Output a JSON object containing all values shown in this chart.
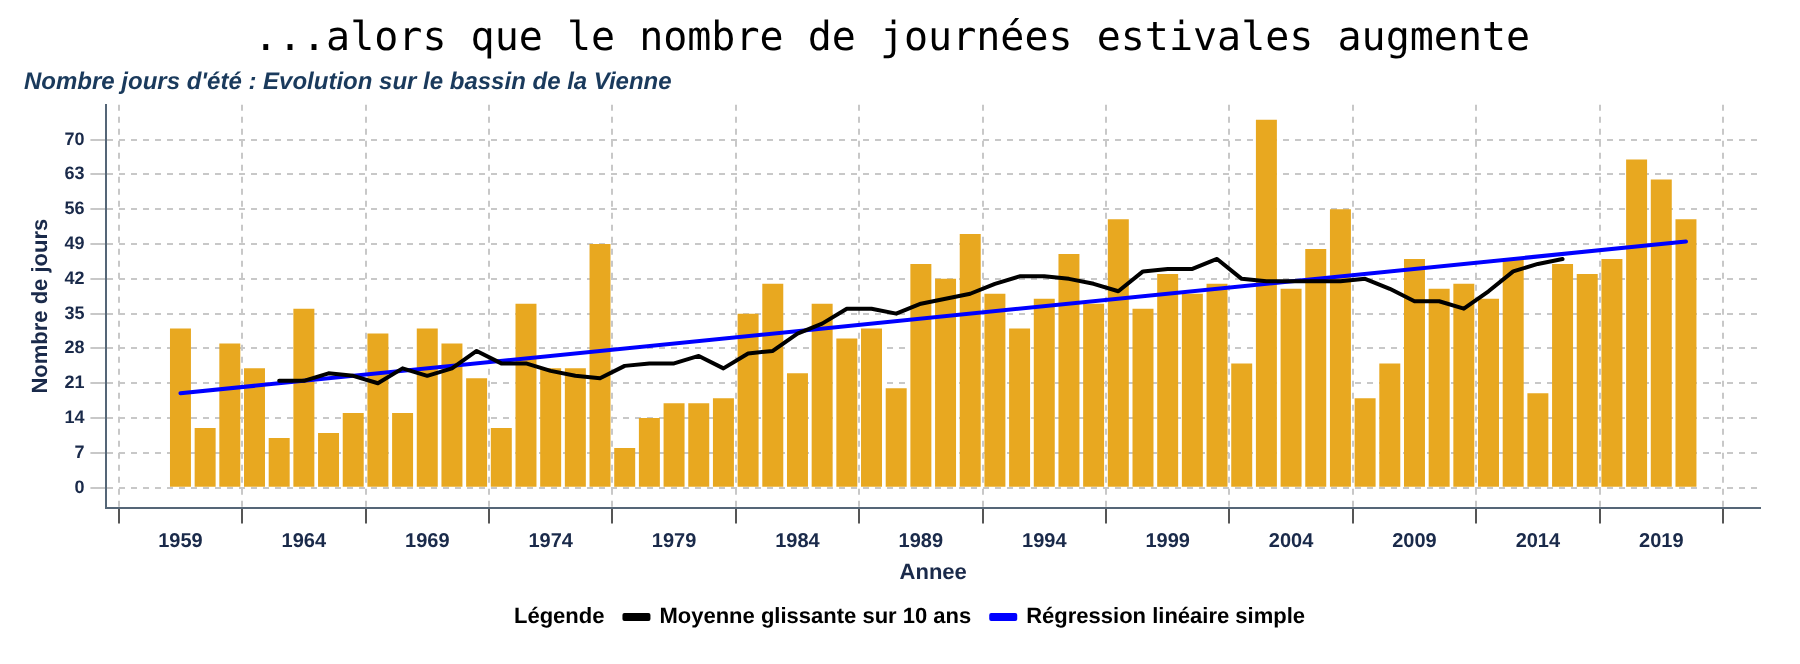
{
  "chart_data": {
    "type": "bar",
    "title": "...alors que le nombre de journées estivales augmente",
    "subtitle": "Nombre jours d'été : Evolution sur le bassin de la Vienne",
    "xlabel": "Annee",
    "ylabel": "Nombre de jours",
    "legend_title": "Légende",
    "x": [
      1959,
      1960,
      1961,
      1962,
      1963,
      1964,
      1965,
      1966,
      1967,
      1968,
      1969,
      1970,
      1971,
      1972,
      1973,
      1974,
      1975,
      1976,
      1977,
      1978,
      1979,
      1980,
      1981,
      1982,
      1983,
      1984,
      1985,
      1986,
      1987,
      1988,
      1989,
      1990,
      1991,
      1992,
      1993,
      1994,
      1995,
      1996,
      1997,
      1998,
      1999,
      2000,
      2001,
      2002,
      2003,
      2004,
      2005,
      2006,
      2007,
      2008,
      2009,
      2010,
      2011,
      2012,
      2013,
      2014,
      2015,
      2016,
      2017,
      2018,
      2019,
      2020
    ],
    "series": [
      {
        "color": "#e8a820",
        "values": [
          32,
          12,
          29,
          24,
          10,
          36,
          11,
          15,
          31,
          15,
          32,
          29,
          22,
          12,
          37,
          24,
          24,
          49,
          8,
          14,
          17,
          17,
          18,
          35,
          41,
          23,
          37,
          30,
          32,
          20,
          45,
          42,
          51,
          39,
          32,
          38,
          47,
          37,
          54,
          36,
          43,
          39,
          41,
          25,
          74,
          40,
          48,
          56,
          18,
          25,
          46,
          40,
          41,
          38,
          46,
          19,
          45,
          43,
          46,
          66,
          62,
          54
        ]
      },
      {
        "type": "line",
        "name": "Moyenne glissante sur 10 ans",
        "color": "#000000",
        "x": [
          1963,
          1964,
          1965,
          1966,
          1967,
          1968,
          1969,
          1970,
          1971,
          1972,
          1973,
          1974,
          1975,
          1976,
          1977,
          1978,
          1979,
          1980,
          1981,
          1982,
          1983,
          1984,
          1985,
          1986,
          1987,
          1988,
          1989,
          1990,
          1991,
          1992,
          1993,
          1994,
          1995,
          1996,
          1997,
          1998,
          1999,
          2000,
          2001,
          2002,
          2003,
          2004,
          2005,
          2006,
          2007,
          2008,
          2009,
          2010,
          2011,
          2012,
          2013,
          2014,
          2015
        ],
        "values": [
          21.5,
          21.5,
          23,
          22.5,
          21,
          24,
          22.5,
          24,
          27.5,
          25,
          25,
          23.5,
          22.5,
          22,
          24.5,
          25,
          25,
          26.5,
          24,
          27,
          27.5,
          31,
          33,
          36,
          36,
          35,
          37,
          38,
          39,
          41,
          42.5,
          42.5,
          42,
          41,
          39.5,
          43.5,
          44,
          44,
          46,
          42,
          41.5,
          41.5,
          41.5,
          41.5,
          42,
          40,
          37.5,
          37.5,
          36,
          39.5,
          43.5,
          45,
          46
        ]
      },
      {
        "type": "line",
        "name": "Régression linéaire simple",
        "color": "#0000ff",
        "x": [
          1959,
          2020
        ],
        "values": [
          19,
          49.5
        ]
      }
    ],
    "xlim": [
      1956,
      2023
    ],
    "xticks": [
      1959,
      1964,
      1969,
      1974,
      1979,
      1984,
      1989,
      1994,
      1999,
      2004,
      2009,
      2014,
      2019
    ],
    "ylim": [
      -4,
      77
    ],
    "yticks": [
      0,
      7,
      14,
      21,
      28,
      35,
      42,
      49,
      56,
      63,
      70
    ],
    "grid": true,
    "legend": "bottom"
  }
}
